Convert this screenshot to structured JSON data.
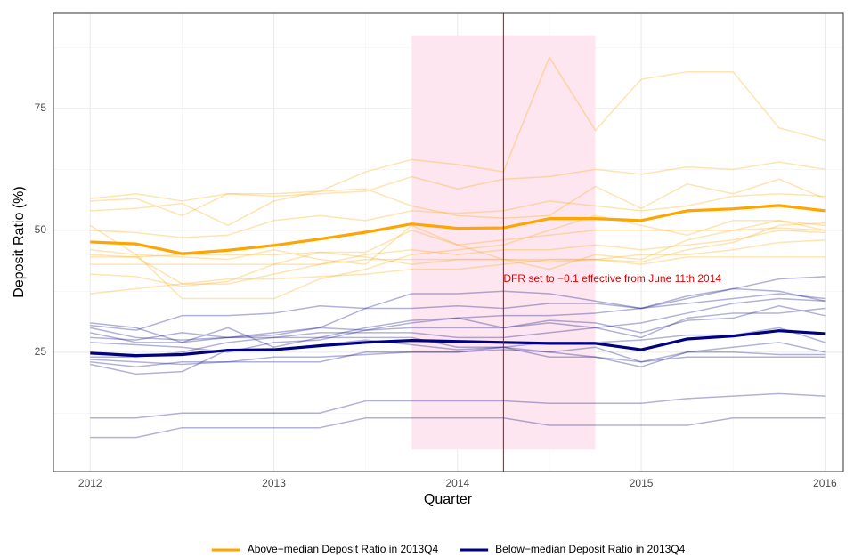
{
  "chart_data": {
    "type": "line",
    "x_label": "Quarter",
    "y_label": "Deposit Ratio (%)",
    "x": [
      2012,
      2012.25,
      2012.5,
      2012.75,
      2013,
      2013.25,
      2013.5,
      2013.75,
      2014,
      2014.25,
      2014.5,
      2014.75,
      2015,
      2015.25,
      2015.5,
      2015.75,
      2016
    ],
    "xlim": [
      2011.8,
      2016.1
    ],
    "xticks": [
      2012,
      2013,
      2014,
      2015,
      2016
    ],
    "x_minor_ticks": [
      2012.5,
      2013.5,
      2014.5,
      2015.5
    ],
    "ylim": [
      0.5,
      94.5
    ],
    "yticks": [
      25,
      50,
      75
    ],
    "y_minor_ticks": [
      12.5,
      37.5,
      62.5,
      87.5
    ],
    "grid": true,
    "shaded_region": {
      "xlim": [
        2013.75,
        2014.75
      ],
      "ylim": [
        5,
        90
      ],
      "color": "#fde6ef"
    },
    "vline": {
      "x": 2014.25,
      "color": "#cc0000"
    },
    "annotation": {
      "text": "DFR set to −0.1 effective from June 11th 2014",
      "x": 2014.25,
      "y": 40,
      "color": "#e00000"
    },
    "legend": "bottom",
    "series": [
      {
        "color": "#FFA500",
        "opacity": 0.3,
        "width": 1.5,
        "values": [
          56.5,
          57.5,
          56,
          57.5,
          57.5,
          58,
          62,
          64.5,
          63.5,
          62,
          85.5,
          70.5,
          81,
          82.5,
          82.5,
          71,
          68.5
        ]
      },
      {
        "color": "#FFA500",
        "opacity": 0.3,
        "width": 1.5,
        "values": [
          56,
          56.5,
          53,
          57.5,
          57,
          57.5,
          58,
          61,
          58.5,
          60.5,
          61,
          62.5,
          61.5,
          63,
          62.5,
          64,
          62.5
        ]
      },
      {
        "color": "#FFA500",
        "opacity": 0.3,
        "width": 1.5,
        "values": [
          54,
          54.5,
          55.5,
          51,
          56,
          58,
          58.5,
          55,
          53,
          52.5,
          53,
          59,
          54.5,
          59.5,
          57.5,
          60.5,
          56.5
        ]
      },
      {
        "color": "#FFA500",
        "opacity": 0.3,
        "width": 1.5,
        "values": [
          51,
          45,
          36,
          36,
          36,
          40,
          42,
          45,
          46,
          47,
          50,
          53,
          51,
          49,
          52,
          52,
          51
        ]
      },
      {
        "color": "#FFA500",
        "opacity": 0.3,
        "width": 1.5,
        "values": [
          50,
          49.5,
          48.5,
          49,
          52,
          53,
          52,
          54,
          53.5,
          54,
          56,
          55,
          54,
          55,
          57,
          57.5,
          57
        ]
      },
      {
        "color": "#FFA500",
        "opacity": 0.3,
        "width": 1.5,
        "values": [
          46,
          45,
          44.5,
          44,
          46,
          44,
          43,
          51,
          47,
          44,
          42,
          45,
          44,
          48,
          50,
          52,
          50
        ]
      },
      {
        "color": "#FFA500",
        "opacity": 0.3,
        "width": 1.5,
        "values": [
          45,
          44.5,
          39,
          39,
          41,
          43,
          45,
          46,
          45,
          46,
          46,
          47,
          46,
          47,
          48,
          50,
          49.5
        ]
      },
      {
        "color": "#FFA500",
        "opacity": 0.3,
        "width": 1.5,
        "values": [
          41,
          40.5,
          38.5,
          39.5,
          43,
          45.5,
          44.5,
          43,
          44,
          44,
          43.5,
          44,
          43,
          44.5,
          44.5,
          44.5,
          44.5
        ]
      },
      {
        "color": "#FFA500",
        "opacity": 0.3,
        "width": 1.5,
        "values": [
          37,
          38,
          39,
          40,
          40,
          40.5,
          41,
          42,
          42,
          43,
          44,
          44,
          45,
          45,
          46,
          47.5,
          48
        ]
      },
      {
        "color": "#FFA500",
        "opacity": 0.3,
        "width": 1.5,
        "values": [
          43,
          43,
          43,
          43,
          43,
          43,
          44,
          44,
          44,
          44,
          44,
          44,
          43.5,
          46,
          47.5,
          51,
          51.5
        ]
      },
      {
        "color": "#FFA500",
        "opacity": 0.3,
        "width": 1.5,
        "values": [
          44.5,
          44.5,
          45,
          45,
          45,
          45.5,
          45.5,
          50,
          47,
          48,
          49,
          50,
          50,
          50,
          50,
          50.5,
          50
        ]
      },
      {
        "color": "#000080",
        "opacity": 0.3,
        "width": 1.5,
        "values": [
          31,
          30,
          27,
          30,
          26,
          28,
          30,
          31.5,
          32,
          32.5,
          32.5,
          33,
          34,
          36,
          38,
          40,
          40.5
        ]
      },
      {
        "color": "#000080",
        "opacity": 0.3,
        "width": 1.5,
        "values": [
          30.5,
          29.5,
          32.5,
          32.5,
          33,
          34.5,
          34,
          37,
          37,
          37.5,
          37,
          35.5,
          34,
          36.5,
          38,
          37.5,
          35.5
        ]
      },
      {
        "color": "#000080",
        "opacity": 0.3,
        "width": 1.5,
        "values": [
          30,
          28,
          27.5,
          28,
          29,
          30,
          34,
          34,
          34.5,
          34,
          35,
          35,
          34,
          35,
          36,
          37,
          36
        ]
      },
      {
        "color": "#000080",
        "opacity": 0.3,
        "width": 1.5,
        "values": [
          29,
          27,
          27,
          28,
          28,
          29,
          29,
          29,
          28,
          28,
          29,
          30,
          31,
          33,
          35,
          36,
          35.5
        ]
      },
      {
        "color": "#000080",
        "opacity": 0.3,
        "width": 1.5,
        "values": [
          28,
          27.5,
          29,
          28,
          28.5,
          30,
          29.5,
          30,
          30,
          30,
          31,
          30,
          28,
          32,
          33,
          33,
          34
        ]
      },
      {
        "color": "#000080",
        "opacity": 0.3,
        "width": 1.5,
        "values": [
          27,
          26.5,
          26,
          25,
          27,
          27.5,
          29.5,
          31,
          32,
          30,
          31.5,
          31,
          29,
          31.5,
          32,
          34.5,
          32.5
        ]
      },
      {
        "color": "#000080",
        "opacity": 0.3,
        "width": 1.5,
        "values": [
          24,
          24,
          25,
          27,
          28,
          28,
          28,
          28,
          26,
          26,
          27,
          27,
          27.5,
          28.5,
          28.5,
          30,
          27
        ]
      },
      {
        "color": "#000080",
        "opacity": 0.3,
        "width": 1.5,
        "values": [
          23,
          22,
          23,
          23,
          24,
          24,
          24.5,
          25,
          25,
          26,
          25,
          26,
          23,
          25,
          26,
          27,
          25
        ]
      },
      {
        "color": "#000080",
        "opacity": 0.3,
        "width": 1.5,
        "values": [
          22.5,
          20.5,
          21,
          25.5,
          25.5,
          26.5,
          27.5,
          26.5,
          25.5,
          26,
          24,
          24,
          22,
          25,
          25,
          24.5,
          24.5
        ]
      },
      {
        "color": "#000080",
        "opacity": 0.3,
        "width": 1.5,
        "values": [
          23.5,
          23,
          22.5,
          23,
          23,
          23,
          25,
          25,
          25,
          25.5,
          25,
          24,
          23,
          24,
          24,
          24,
          24
        ]
      },
      {
        "color": "#000080",
        "opacity": 0.3,
        "width": 1.5,
        "values": [
          11.5,
          11.5,
          12.5,
          12.5,
          12.5,
          12.5,
          15,
          15,
          15,
          15,
          14.5,
          14.5,
          14.5,
          15.5,
          16,
          16.5,
          16
        ]
      },
      {
        "color": "#000080",
        "opacity": 0.3,
        "width": 1.5,
        "values": [
          7.5,
          7.5,
          9.5,
          9.5,
          9.5,
          9.5,
          11.5,
          11.5,
          11.5,
          11.5,
          10,
          10,
          10,
          10,
          11.5,
          11.5,
          11.5
        ]
      },
      {
        "name": "Above−median Deposit Ratio in 2013Q4",
        "color": "#FFA500",
        "opacity": 1,
        "width": 3.2,
        "values": [
          47.6,
          47.2,
          45.2,
          45.9,
          46.9,
          48.2,
          49.6,
          51.3,
          50.4,
          50.5,
          52.4,
          52.4,
          52,
          54,
          54.4,
          55.1,
          54
        ]
      },
      {
        "name": "Below−median Deposit Ratio in 2013Q4",
        "color": "#000080",
        "opacity": 1,
        "width": 3.2,
        "values": [
          24.8,
          24.3,
          24.5,
          25.4,
          25.5,
          26.3,
          27,
          27.4,
          27.2,
          27,
          26.8,
          26.8,
          25.5,
          27.7,
          28.3,
          29.4,
          28.8
        ]
      }
    ]
  }
}
